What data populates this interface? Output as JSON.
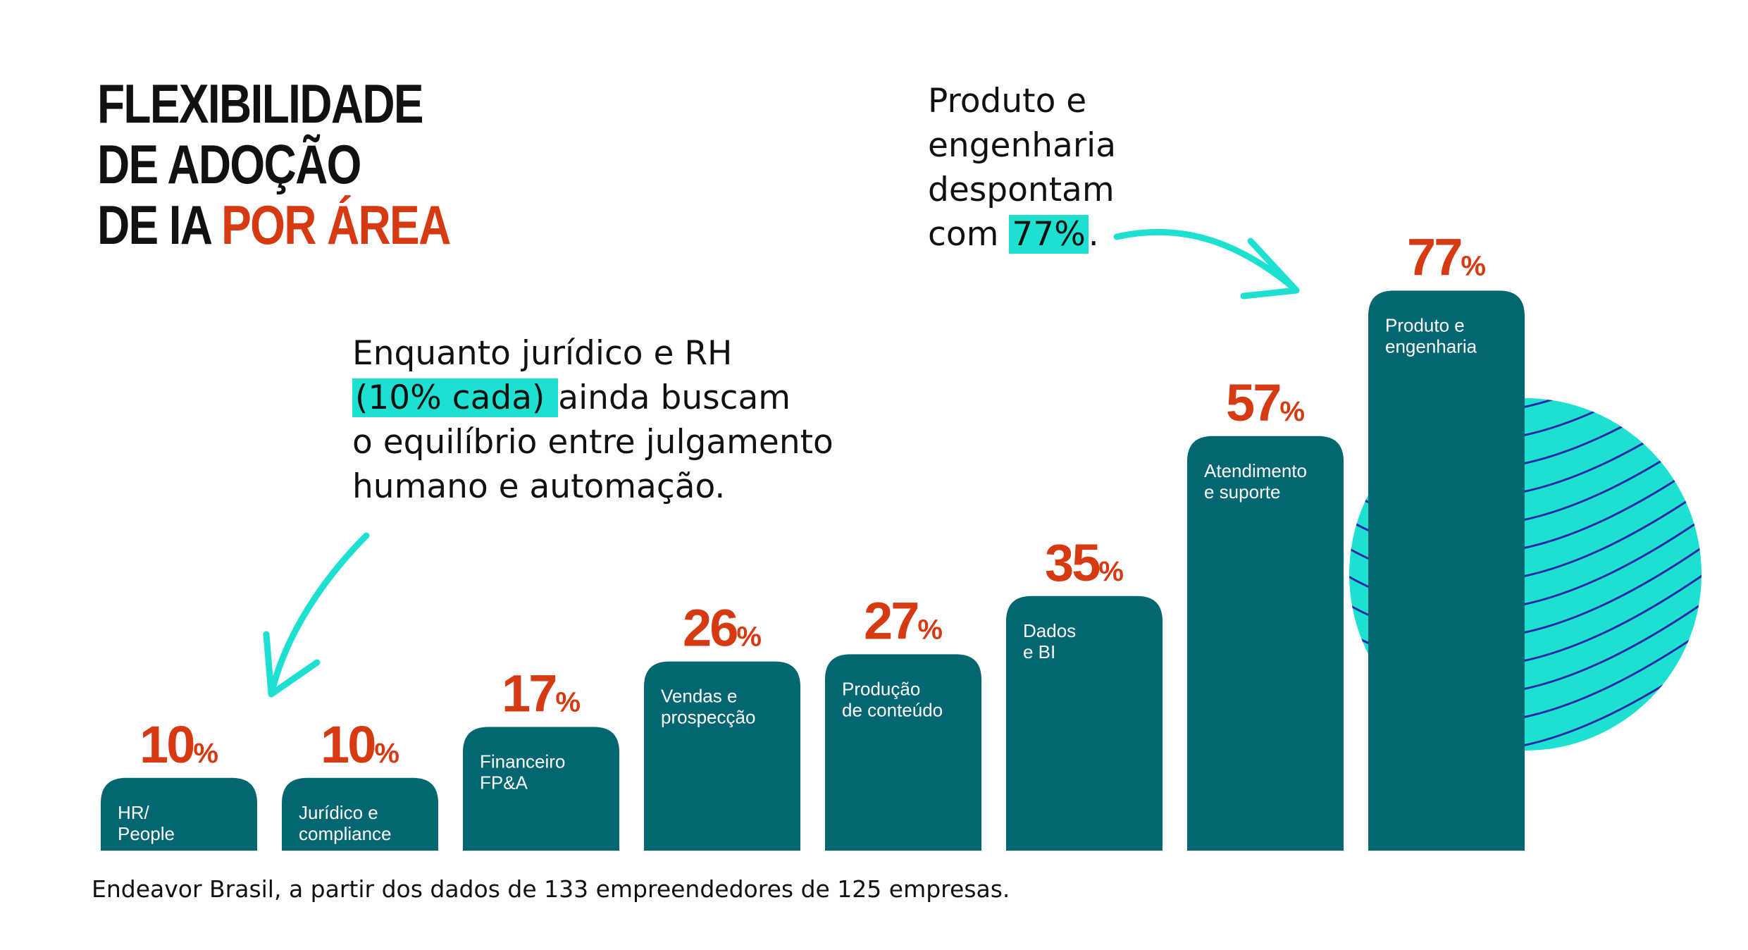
{
  "title": {
    "line1": "FLEXIBILIDADE",
    "line2": "DE ADOÇÃO",
    "line3_prefix": "DE IA ",
    "line3_accent": "POR ÁREA"
  },
  "callout_top": {
    "line1": "Produto e",
    "line2": "engenharia",
    "line3": "despontam",
    "line4_prefix": "com ",
    "line4_highlight": "77%",
    "line4_suffix": "."
  },
  "callout_mid": {
    "line1": "Enquanto jurídico e RH",
    "line2_highlight": "(10% cada) ",
    "line2_suffix": "ainda buscam",
    "line3": "o equilíbrio entre julgamento",
    "line4": "humano e automação."
  },
  "footnote": "Endeavor Brasil, a partir dos dados de 133 empreendedores de 125 empresas.",
  "colors": {
    "bar": "#046670",
    "value_label": "#d63a12",
    "highlight": "#1ee0d0",
    "title_accent": "#d63a12",
    "arrow": "#1ee0d0",
    "wave_lines": "#2a2aa8"
  },
  "chart_data": {
    "type": "bar",
    "categories": [
      [
        "HR/",
        "People"
      ],
      [
        "Jurídico e",
        "compliance"
      ],
      [
        "Financeiro",
        "FP&A"
      ],
      [
        "Vendas e",
        "prospecção"
      ],
      [
        "Produção",
        "de conteúdo"
      ],
      [
        "Dados",
        "e BI"
      ],
      [
        "Atendimento",
        "e suporte"
      ],
      [
        "Produto e",
        "engenharia"
      ]
    ],
    "values": [
      10,
      10,
      17,
      26,
      27,
      35,
      57,
      77
    ],
    "value_suffix": "%",
    "ylim": [
      0,
      77
    ],
    "grid": false,
    "legend": "none",
    "xlabel": "",
    "ylabel": ""
  }
}
